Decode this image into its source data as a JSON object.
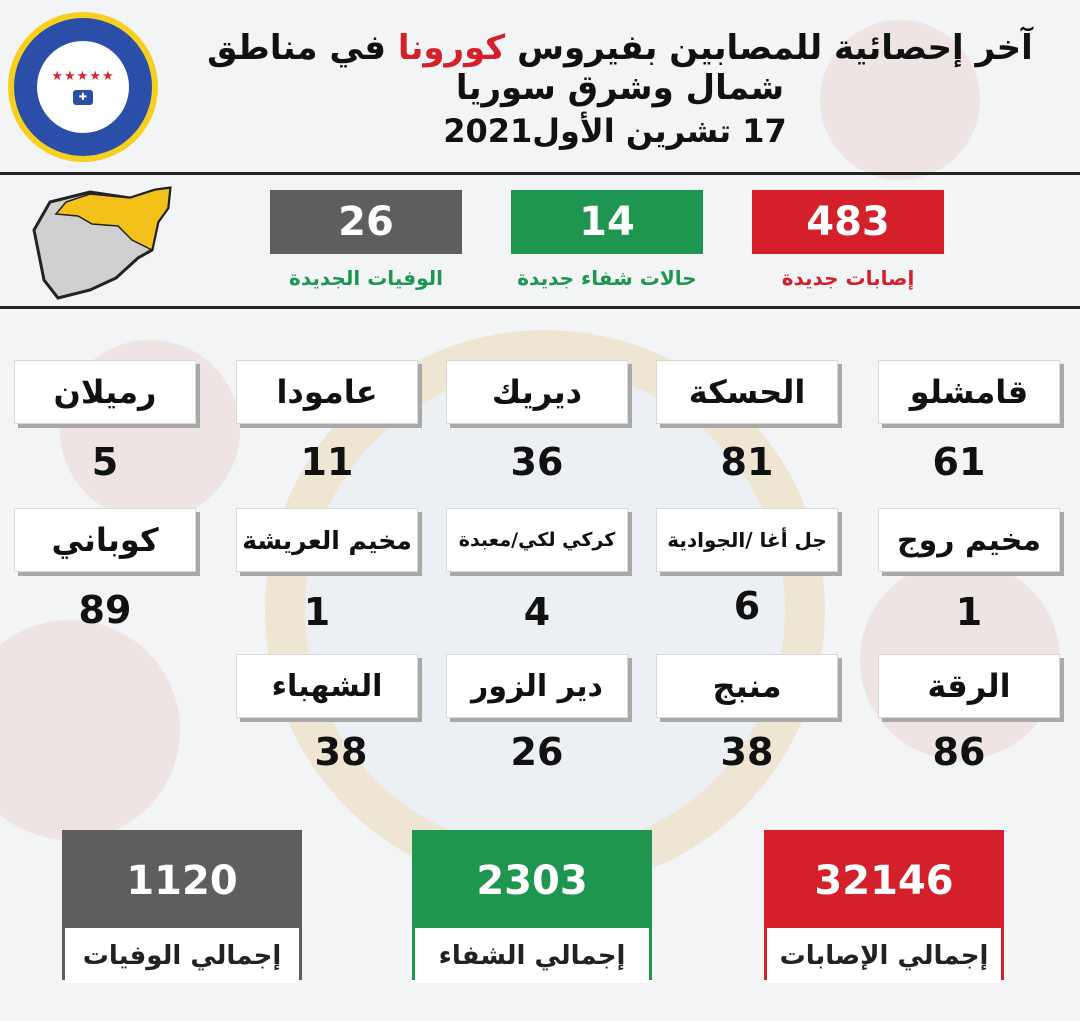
{
  "header": {
    "title_before": "آخر إحصائية للمصابين بفيروس",
    "title_highlight": "كورونا",
    "title_after": "في مناطق شمال وشرق سوريا",
    "date": "17 تشرين الأول2021"
  },
  "colors": {
    "red": "#d3202a",
    "green": "#1e9650",
    "gray": "#5e5e5e",
    "map_yellow": "#f3c21a",
    "map_gray": "#d0d0d0"
  },
  "daily": {
    "infections": {
      "value": "483",
      "label": "إصابات جديدة"
    },
    "recoveries": {
      "value": "14",
      "label": "حالات شفاء جديدة"
    },
    "deaths": {
      "value": "26",
      "label": "الوفيات الجديدة"
    }
  },
  "regions": [
    {
      "name": "قامشلو",
      "value": "61"
    },
    {
      "name": "الحسكة",
      "value": "81"
    },
    {
      "name": "ديريك",
      "value": "36"
    },
    {
      "name": "عامودا",
      "value": "11"
    },
    {
      "name": "رميلان",
      "value": "5"
    },
    {
      "name": "مخيم روج",
      "value": "1"
    },
    {
      "name": "جل أغا /الجوادية",
      "value": "6"
    },
    {
      "name": "كركي لكي/معبدة",
      "value": "4"
    },
    {
      "name": "مخيم العريشة",
      "value": "1"
    },
    {
      "name": "كوباني",
      "value": "89"
    },
    {
      "name": "الرقة",
      "value": "86"
    },
    {
      "name": "منبج",
      "value": "38"
    },
    {
      "name": "دير الزور",
      "value": "26"
    },
    {
      "name": "الشهباء",
      "value": "38"
    }
  ],
  "totals": {
    "infections": {
      "value": "32146",
      "label": "إجمالي الإصابات"
    },
    "recoveries": {
      "value": "2303",
      "label": "إجمالي الشفاء"
    },
    "deaths": {
      "value": "1120",
      "label": "إجمالي الوفيات"
    }
  }
}
